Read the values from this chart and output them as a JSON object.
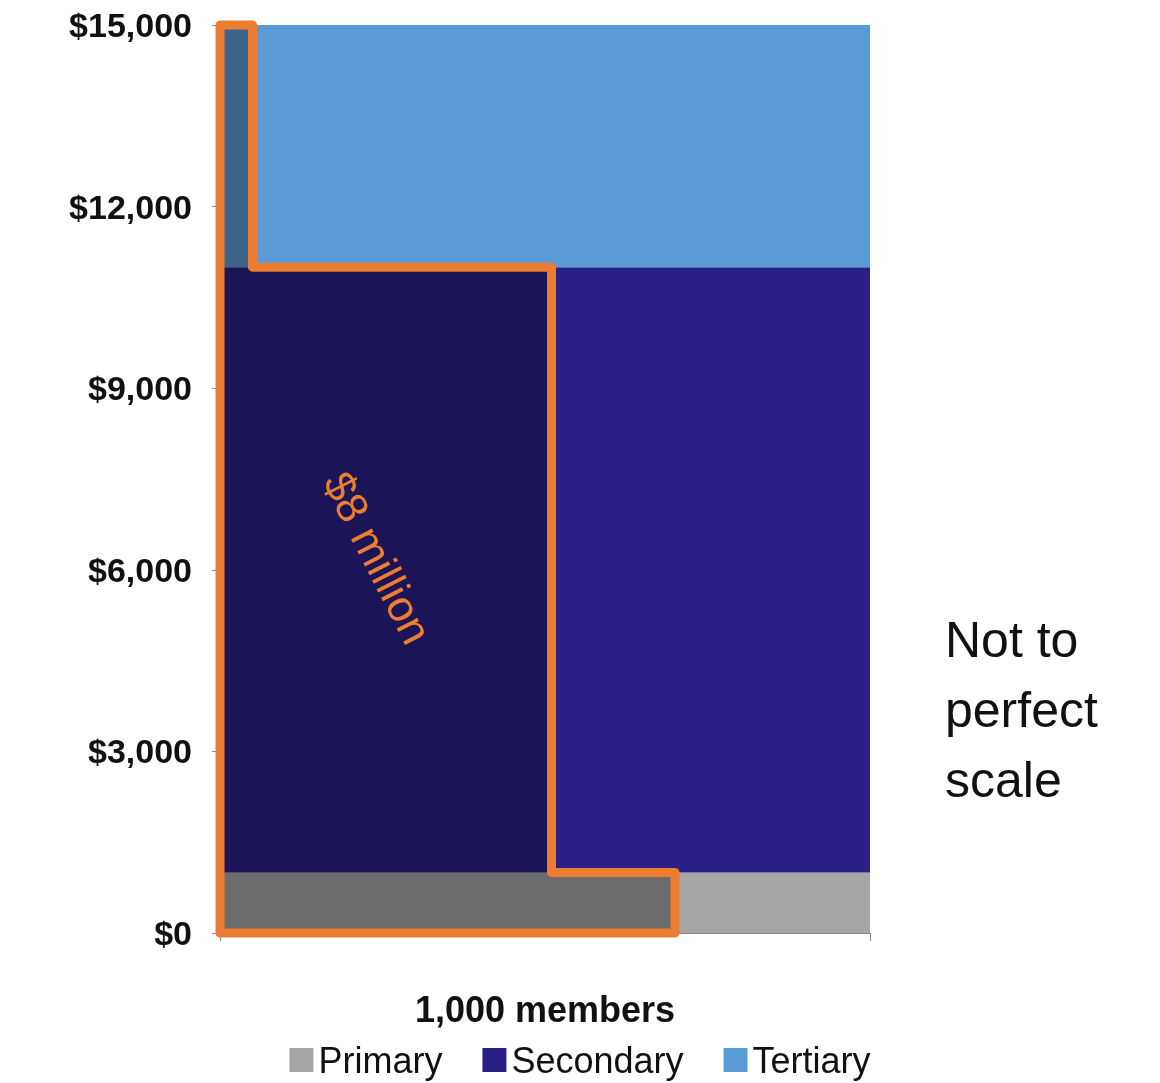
{
  "chart_data": {
    "type": "bar",
    "stacked": true,
    "xlabel": "1,000 members",
    "categories": [
      null
    ],
    "series": [
      {
        "name": "Primary",
        "color": "#a6a6a6",
        "values": [
          1000
        ]
      },
      {
        "name": "Secondary",
        "color": "#2a2086",
        "values": [
          10000
        ]
      },
      {
        "name": "Tertiary",
        "color": "#5b9bd5",
        "values": [
          4000
        ]
      }
    ],
    "ylim": [
      0,
      15000
    ],
    "yticks": [
      {
        "value": 0,
        "label": "$0"
      },
      {
        "value": 3000,
        "label": "$3,000"
      },
      {
        "value": 6000,
        "label": "$6,000"
      },
      {
        "value": 9000,
        "label": "$9,000"
      },
      {
        "value": 12000,
        "label": "$12,000"
      },
      {
        "value": 15000,
        "label": "$15,000"
      }
    ],
    "grid": false,
    "legend": "bottom",
    "annotations": [
      "$8 million",
      "Not to perfect scale"
    ]
  }
}
